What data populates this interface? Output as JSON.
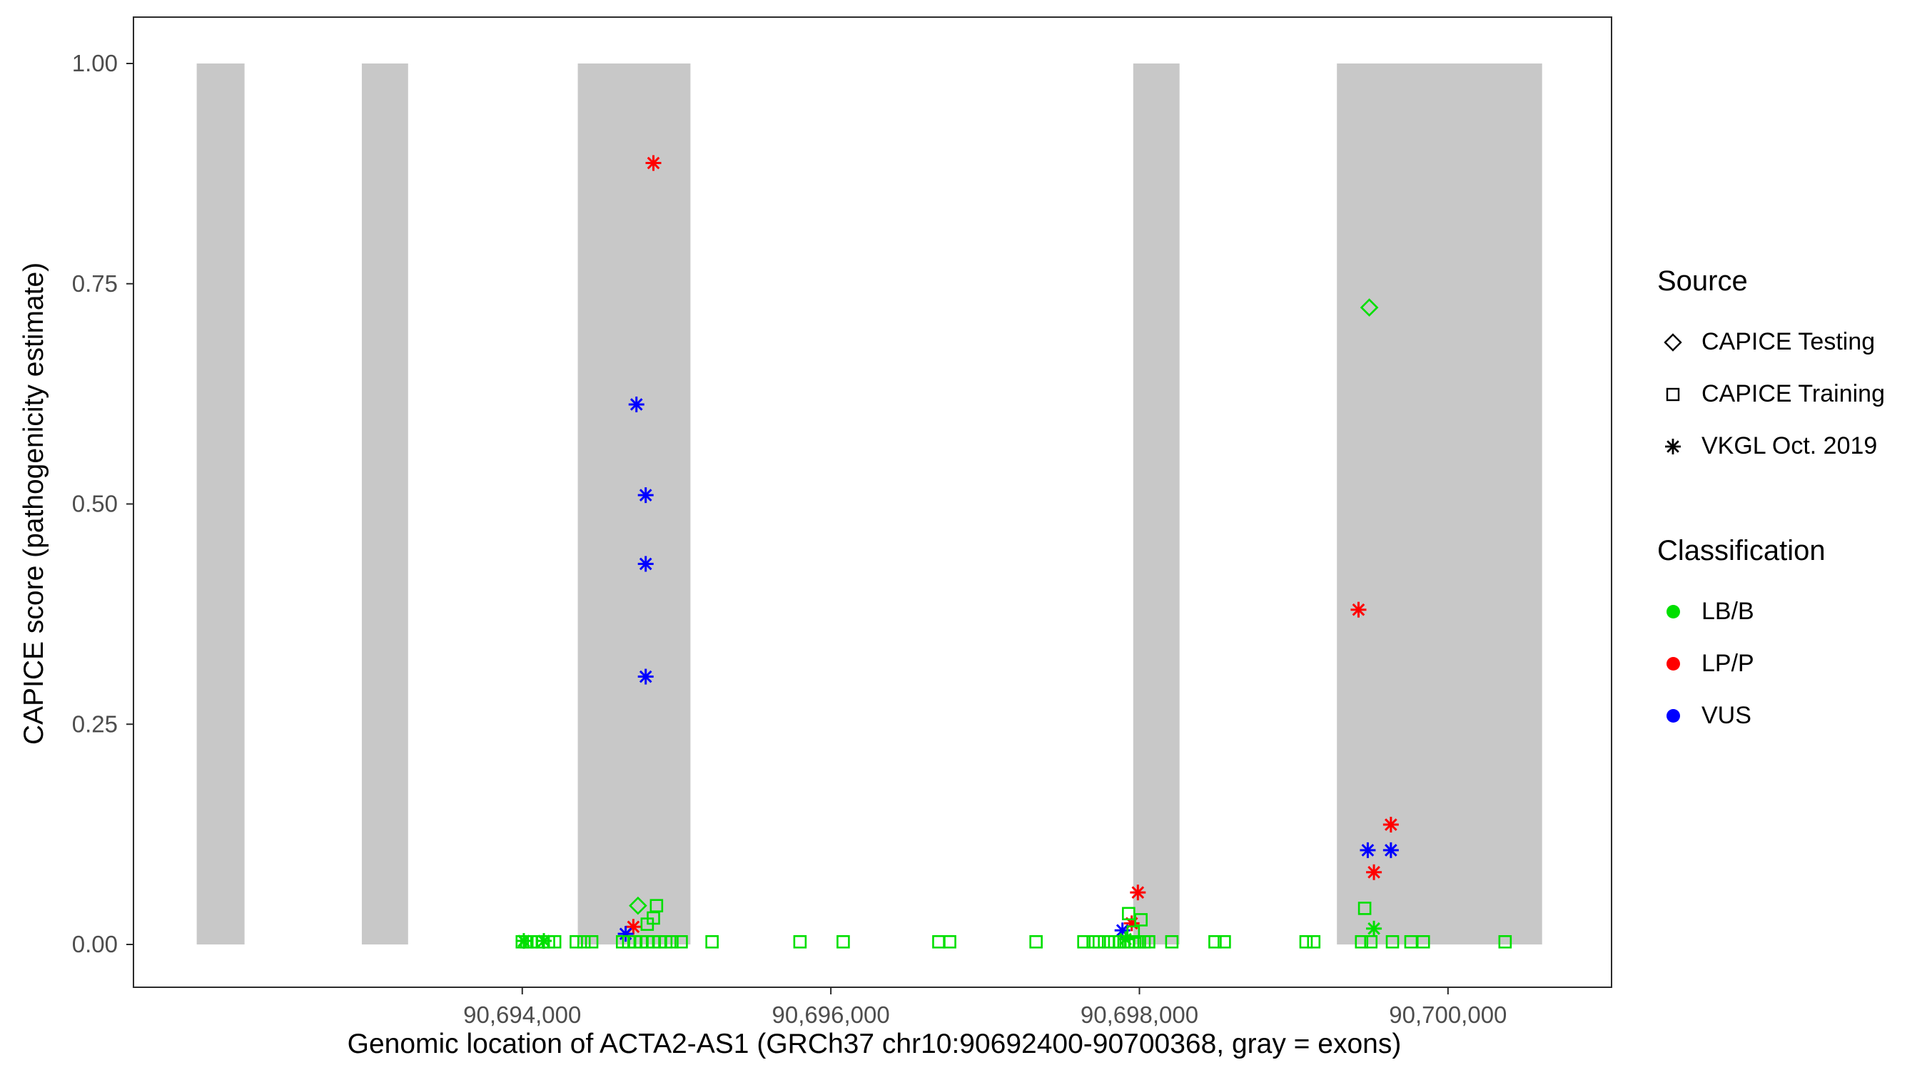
{
  "figure": {
    "xlabel": "Genomic location of ACTA2-AS1 (GRCh37 chr10:90692400-90700368, gray = exons)",
    "ylabel": "CAPICE score (pathogenicity estimate)"
  },
  "legend": {
    "source_title": "Source",
    "source_items": [
      {
        "key": "testing",
        "shape": "diamond",
        "label": "CAPICE Testing"
      },
      {
        "key": "training",
        "shape": "square",
        "label": "CAPICE Training"
      },
      {
        "key": "vkgl",
        "shape": "asterisk",
        "label": "VKGL Oct. 2019"
      }
    ],
    "classification_title": "Classification",
    "classification_items": [
      {
        "key": "lbb",
        "label": "LB/B"
      },
      {
        "key": "lpp",
        "label": "LP/P"
      },
      {
        "key": "vus",
        "label": "VUS"
      }
    ]
  },
  "chart_data": {
    "type": "scatter",
    "title": "",
    "xlabel": "Genomic location of ACTA2-AS1 (GRCh37 chr10:90692400-90700368, gray = exons)",
    "ylabel": "CAPICE score (pathogenicity estimate)",
    "xlim": [
      90691480,
      90701060
    ],
    "ylim": [
      0,
      1
    ],
    "grid": false,
    "legend_position": "right",
    "x_ticks": [
      {
        "value": 90694000,
        "label": "90,694,000"
      },
      {
        "value": 90696000,
        "label": "90,696,000"
      },
      {
        "value": 90698000,
        "label": "90,698,000"
      },
      {
        "value": 90700000,
        "label": "90,700,000"
      }
    ],
    "y_ticks": [
      {
        "value": 0,
        "label": "0.00"
      },
      {
        "value": 0.25,
        "label": "0.25"
      },
      {
        "value": 0.5,
        "label": "0.50"
      },
      {
        "value": 0.75,
        "label": "0.75"
      },
      {
        "value": 1,
        "label": "1.00"
      }
    ],
    "colors": {
      "lbb": "#00DF00",
      "lpp": "#FF0000",
      "vus": "#0000FF",
      "exon": "#C8C8C8"
    },
    "shapes": {
      "testing": "diamond",
      "training": "square",
      "vkgl": "asterisk"
    },
    "source_labels": {
      "testing": "CAPICE Testing",
      "training": "CAPICE Training",
      "vkgl": "VKGL Oct. 2019"
    },
    "classification_labels": {
      "lbb": "LB/B",
      "lpp": "LP/P",
      "vus": "VUS"
    },
    "exons": [
      [
        90691890,
        90692200
      ],
      [
        90692960,
        90693260
      ],
      [
        90694360,
        90695090
      ],
      [
        90697960,
        90698260
      ],
      [
        90699280,
        90700610
      ]
    ],
    "point_format": [
      "genomic_position",
      "capice_score",
      "source",
      "classification"
    ],
    "points": [
      [
        90694850,
        0.887,
        "vkgl",
        "lpp"
      ],
      [
        90699420,
        0.38,
        "vkgl",
        "lpp"
      ],
      [
        90699630,
        0.136,
        "vkgl",
        "lpp"
      ],
      [
        90699520,
        0.082,
        "vkgl",
        "lpp"
      ],
      [
        90697990,
        0.059,
        "vkgl",
        "lpp"
      ],
      [
        90697950,
        0.024,
        "vkgl",
        "lpp"
      ],
      [
        90694720,
        0.02,
        "vkgl",
        "lpp"
      ],
      [
        90694740,
        0.613,
        "vkgl",
        "vus"
      ],
      [
        90694800,
        0.51,
        "vkgl",
        "vus"
      ],
      [
        90694800,
        0.432,
        "vkgl",
        "vus"
      ],
      [
        90694800,
        0.304,
        "vkgl",
        "vus"
      ],
      [
        90699480,
        0.107,
        "vkgl",
        "vus"
      ],
      [
        90699630,
        0.107,
        "vkgl",
        "vus"
      ],
      [
        90697890,
        0.016,
        "vkgl",
        "vus"
      ],
      [
        90694670,
        0.012,
        "vkgl",
        "vus"
      ],
      [
        90699520,
        0.018,
        "vkgl",
        "lbb"
      ],
      [
        90697910,
        0.006,
        "vkgl",
        "lbb"
      ],
      [
        90694010,
        0.004,
        "vkgl",
        "lbb"
      ],
      [
        90694140,
        0.004,
        "vkgl",
        "lbb"
      ],
      [
        90699490,
        0.723,
        "testing",
        "lbb"
      ],
      [
        90694750,
        0.044,
        "testing",
        "lbb"
      ],
      [
        90694870,
        0.044,
        "training",
        "lbb"
      ],
      [
        90694850,
        0.03,
        "training",
        "lbb"
      ],
      [
        90694810,
        0.023,
        "training",
        "lbb"
      ],
      [
        90699460,
        0.041,
        "training",
        "lbb"
      ],
      [
        90697930,
        0.035,
        "training",
        "lbb"
      ],
      [
        90698010,
        0.028,
        "training",
        "lbb"
      ],
      [
        90697960,
        0.014,
        "training",
        "lbb"
      ],
      [
        90694000,
        0.003,
        "training",
        "lbb"
      ],
      [
        90694030,
        0.003,
        "training",
        "lbb"
      ],
      [
        90694060,
        0.003,
        "training",
        "lbb"
      ],
      [
        90694095,
        0.003,
        "training",
        "lbb"
      ],
      [
        90694130,
        0.003,
        "training",
        "lbb"
      ],
      [
        90694170,
        0.003,
        "training",
        "lbb"
      ],
      [
        90694210,
        0.003,
        "training",
        "lbb"
      ],
      [
        90694350,
        0.003,
        "training",
        "lbb"
      ],
      [
        90694400,
        0.003,
        "training",
        "lbb"
      ],
      [
        90694450,
        0.003,
        "training",
        "lbb"
      ],
      [
        90694650,
        0.003,
        "training",
        "lbb"
      ],
      [
        90694690,
        0.003,
        "training",
        "lbb"
      ],
      [
        90694730,
        0.003,
        "training",
        "lbb"
      ],
      [
        90694770,
        0.003,
        "training",
        "lbb"
      ],
      [
        90694810,
        0.003,
        "training",
        "lbb"
      ],
      [
        90694850,
        0.003,
        "training",
        "lbb"
      ],
      [
        90694890,
        0.003,
        "training",
        "lbb"
      ],
      [
        90694930,
        0.003,
        "training",
        "lbb"
      ],
      [
        90694970,
        0.003,
        "training",
        "lbb"
      ],
      [
        90695030,
        0.003,
        "training",
        "lbb"
      ],
      [
        90695230,
        0.003,
        "training",
        "lbb"
      ],
      [
        90695800,
        0.003,
        "training",
        "lbb"
      ],
      [
        90696080,
        0.003,
        "training",
        "lbb"
      ],
      [
        90696700,
        0.003,
        "training",
        "lbb"
      ],
      [
        90696770,
        0.003,
        "training",
        "lbb"
      ],
      [
        90697330,
        0.003,
        "training",
        "lbb"
      ],
      [
        90697640,
        0.003,
        "training",
        "lbb"
      ],
      [
        90697700,
        0.003,
        "training",
        "lbb"
      ],
      [
        90697740,
        0.003,
        "training",
        "lbb"
      ],
      [
        90697800,
        0.003,
        "training",
        "lbb"
      ],
      [
        90697840,
        0.003,
        "training",
        "lbb"
      ],
      [
        90697870,
        0.003,
        "training",
        "lbb"
      ],
      [
        90697900,
        0.003,
        "training",
        "lbb"
      ],
      [
        90697930,
        0.003,
        "training",
        "lbb"
      ],
      [
        90697970,
        0.003,
        "training",
        "lbb"
      ],
      [
        90698000,
        0.003,
        "training",
        "lbb"
      ],
      [
        90698030,
        0.003,
        "training",
        "lbb"
      ],
      [
        90698060,
        0.003,
        "training",
        "lbb"
      ],
      [
        90698210,
        0.003,
        "training",
        "lbb"
      ],
      [
        90698490,
        0.003,
        "training",
        "lbb"
      ],
      [
        90698550,
        0.003,
        "training",
        "lbb"
      ],
      [
        90699080,
        0.003,
        "training",
        "lbb"
      ],
      [
        90699130,
        0.003,
        "training",
        "lbb"
      ],
      [
        90699440,
        0.003,
        "training",
        "lbb"
      ],
      [
        90699500,
        0.003,
        "training",
        "lbb"
      ],
      [
        90699640,
        0.003,
        "training",
        "lbb"
      ],
      [
        90699760,
        0.003,
        "training",
        "lbb"
      ],
      [
        90699840,
        0.003,
        "training",
        "lbb"
      ],
      [
        90700370,
        0.003,
        "training",
        "lbb"
      ]
    ]
  }
}
